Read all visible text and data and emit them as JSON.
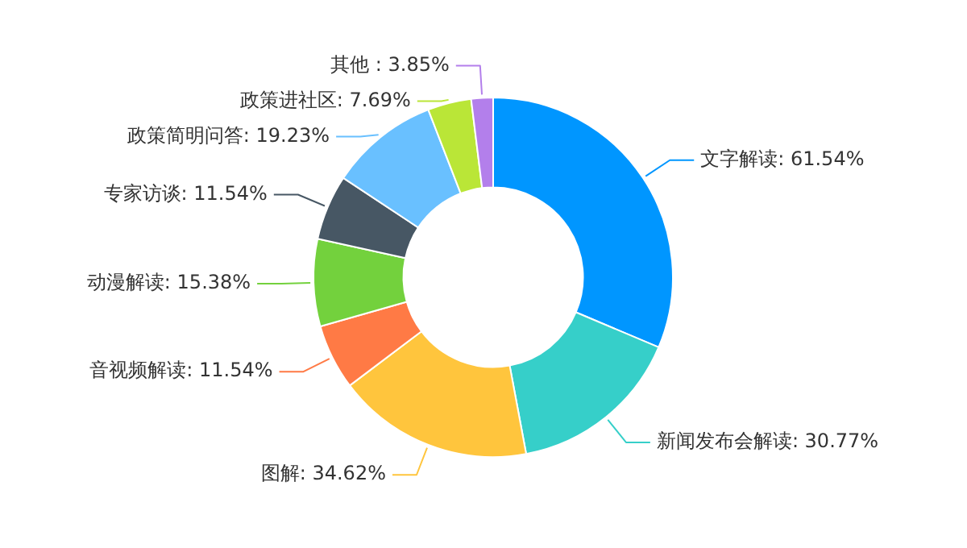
{
  "chart_data": {
    "type": "donut",
    "categories": [
      "文字解读",
      "新闻发布会解读",
      "图解",
      "音视频解读",
      "动漫解读",
      "专家访谈",
      "政策简明问答",
      "政策进社区",
      "其他 "
    ],
    "values": [
      61.54,
      30.77,
      34.62,
      11.54,
      15.38,
      11.54,
      19.23,
      7.69,
      3.85
    ],
    "value_labels": [
      "61.54%",
      "30.77%",
      "34.62%",
      "11.54%",
      "15.38%",
      "11.54%",
      "19.23%",
      "7.69%",
      "3.85%"
    ],
    "colors": [
      "#0096ff",
      "#36cfc9",
      "#ffc53d",
      "#ff7a45",
      "#73d13d",
      "#475764",
      "#69c0ff",
      "#bae637",
      "#b37feb"
    ],
    "legend": false
  }
}
